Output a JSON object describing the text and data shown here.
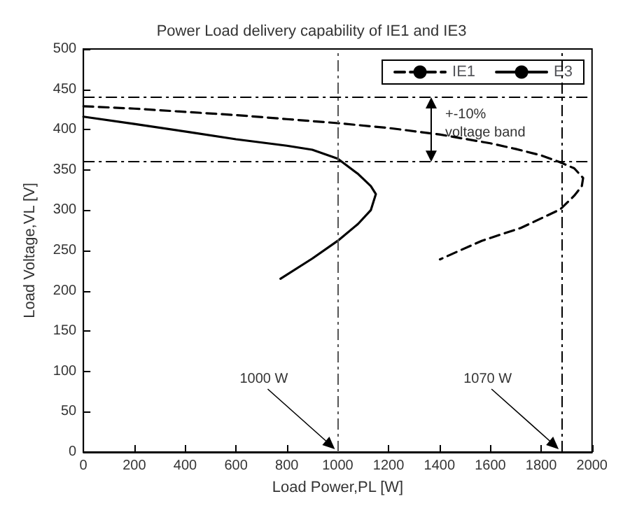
{
  "chart_data": {
    "type": "line",
    "title": "Power Load delivery capability of IE1 and IE3",
    "xlabel": "Load Power,PL [W]",
    "ylabel": "Load Voltage,VL [V]",
    "xlim": [
      0,
      2000
    ],
    "xticks": [
      0,
      200,
      400,
      600,
      800,
      1000,
      1200,
      1400,
      1600,
      1800,
      2000
    ],
    "ylim": [
      0,
      500
    ],
    "yticks": [
      0,
      50,
      100,
      150,
      200,
      250,
      300,
      350,
      400,
      450,
      500
    ],
    "grid": false,
    "legend": "top right",
    "marker": "none",
    "series": [
      {
        "name": "IE1",
        "color": "#000000",
        "line_style": "dashed",
        "x": [
          0,
          200,
          400,
          600,
          800,
          1000,
          1200,
          1400,
          1600,
          1700,
          1800,
          1870,
          1930,
          1965,
          1960,
          1930,
          1875,
          1720,
          1566,
          1402
        ],
        "values": [
          429,
          426,
          422,
          418,
          413,
          408,
          402,
          394,
          383,
          376,
          368,
          360,
          352,
          340,
          330,
          318,
          301,
          278,
          262,
          239
        ]
      },
      {
        "name": "E3",
        "color": "#000000",
        "line_style": "solid",
        "x": [
          0,
          200,
          413,
          600,
          800,
          900,
          1000,
          1080,
          1130,
          1150,
          1130,
          1080,
          1000,
          900,
          775
        ],
        "values": [
          416,
          407,
          397,
          388,
          380,
          375,
          364,
          345,
          330,
          320,
          300,
          283,
          262,
          240,
          215
        ]
      }
    ],
    "ref_lines": [
      {
        "axis": "y",
        "value": 440,
        "color": "#000000",
        "line_style": "dashed"
      },
      {
        "axis": "y",
        "value": 360,
        "color": "#000000",
        "line_style": "dashed"
      },
      {
        "axis": "x",
        "value": 1000,
        "color": "#555555",
        "line_style": "dashed"
      },
      {
        "axis": "x",
        "value": 1880,
        "color": "#000000",
        "line_style": "dashed"
      }
    ],
    "annotations": [
      {
        "text": "1000 W",
        "x": 1000,
        "y": 0
      },
      {
        "text": "1070 W",
        "x": 1880,
        "y": 0
      },
      "+-10%\nvoltage band"
    ]
  }
}
